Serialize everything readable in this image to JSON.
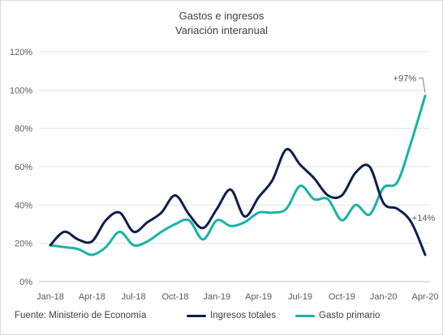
{
  "chart_data": {
    "type": "line",
    "title": "Gastos e ingresos",
    "subtitle": "Variación interanual",
    "source": "Fuente: Ministerio de Economía",
    "ylim": [
      0,
      120
    ],
    "yticks": [
      "0%",
      "20%",
      "40%",
      "60%",
      "80%",
      "100%",
      "120%"
    ],
    "x_tick_labels": [
      "Jan-18",
      "Apr-18",
      "Jul-18",
      "Oct-18",
      "Jan-19",
      "Apr-19",
      "Jul-19",
      "Oct-19",
      "Jan-20",
      "Apr-20"
    ],
    "grid": true,
    "legend": "bottom",
    "series": [
      {
        "name": "Ingresos totales",
        "color": "#0d1f4f",
        "x": [
          "2018-01",
          "2018-02",
          "2018-03",
          "2018-04",
          "2018-05",
          "2018-06",
          "2018-07",
          "2018-08",
          "2018-09",
          "2018-10",
          "2018-11",
          "2018-12",
          "2019-01",
          "2019-02",
          "2019-03",
          "2019-04",
          "2019-05",
          "2019-06",
          "2019-07",
          "2019-08",
          "2019-09",
          "2019-10",
          "2019-11",
          "2019-12",
          "2020-01",
          "2020-02",
          "2020-03",
          "2020-04"
        ],
        "values": [
          19,
          26,
          22,
          21,
          32,
          36,
          26,
          31,
          36,
          45,
          35,
          28,
          38,
          48,
          34,
          44,
          53,
          69,
          61,
          54,
          45,
          45,
          57,
          60,
          41,
          38,
          31,
          14
        ]
      },
      {
        "name": "Gasto primario",
        "color": "#17b4a6",
        "x": [
          "2018-01",
          "2018-02",
          "2018-03",
          "2018-04",
          "2018-05",
          "2018-06",
          "2018-07",
          "2018-08",
          "2018-09",
          "2018-10",
          "2018-11",
          "2018-12",
          "2019-01",
          "2019-02",
          "2019-03",
          "2019-04",
          "2019-05",
          "2019-06",
          "2019-07",
          "2019-08",
          "2019-09",
          "2019-10",
          "2019-11",
          "2019-12",
          "2020-01",
          "2020-02",
          "2020-03",
          "2020-04"
        ],
        "values": [
          19,
          18,
          17,
          14,
          18,
          26,
          19,
          21,
          26,
          30,
          32,
          22,
          32,
          29,
          31,
          36,
          36,
          38,
          50,
          43,
          43,
          32,
          40,
          35,
          49,
          52,
          73,
          97
        ]
      }
    ],
    "annotations": [
      {
        "text": "+97%",
        "x": "2020-04",
        "y": 97
      },
      {
        "text": "+14%",
        "x": "2020-04",
        "y": 14
      }
    ]
  }
}
